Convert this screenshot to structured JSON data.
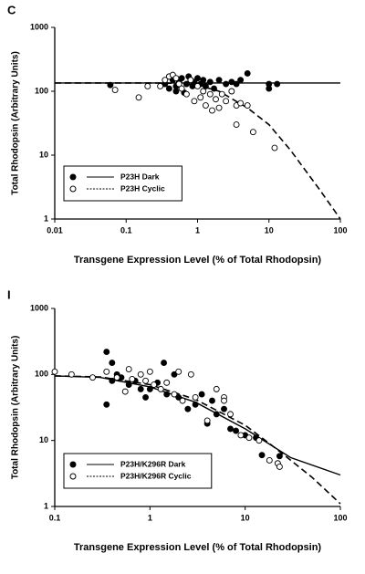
{
  "chart_data": [
    {
      "type": "scatter",
      "panel_label": "C",
      "xlabel": "Transgene Expression Level (% of Total Rhodopsin)",
      "ylabel": "Total Rhodopsin (Arbitrary Units)",
      "log_x": true,
      "log_y": true,
      "xlim": [
        0.01,
        100
      ],
      "xticks": [
        0.01,
        0.1,
        1,
        10,
        100
      ],
      "ylim": [
        1,
        1000
      ],
      "yticks": [
        1,
        10,
        100,
        1000
      ],
      "legend": "lower left",
      "series": [
        {
          "name": "P23H Dark",
          "color": "#000000",
          "marker_filled": true,
          "line_dash": false,
          "x": [
            0.06,
            0.35,
            0.4,
            0.45,
            0.5,
            0.5,
            0.55,
            0.6,
            0.65,
            0.7,
            0.75,
            0.8,
            0.85,
            0.9,
            1.0,
            1.1,
            1.2,
            1.3,
            1.5,
            1.7,
            2.0,
            2.5,
            3.0,
            3.5,
            4.0,
            5.0,
            10,
            10,
            13
          ],
          "values": [
            125,
            130,
            110,
            150,
            120,
            100,
            140,
            160,
            95,
            130,
            170,
            150,
            120,
            140,
            160,
            130,
            150,
            120,
            140,
            110,
            150,
            130,
            140,
            130,
            150,
            190,
            110,
            130,
            130
          ],
          "fit_x": [
            0.01,
            100
          ],
          "fit_values": [
            135,
            135
          ]
        },
        {
          "name": "P23H Cyclic",
          "color": "#000000",
          "marker_filled": false,
          "line_dash": true,
          "x": [
            0.07,
            0.15,
            0.2,
            0.3,
            0.35,
            0.4,
            0.45,
            0.5,
            0.55,
            0.6,
            0.7,
            0.8,
            0.9,
            1.0,
            1.1,
            1.2,
            1.3,
            1.5,
            1.6,
            1.8,
            2.0,
            2.2,
            2.5,
            3.0,
            3.5,
            4.0,
            5.0,
            6.0,
            3.5,
            12
          ],
          "values": [
            105,
            80,
            120,
            120,
            150,
            170,
            180,
            160,
            130,
            110,
            90,
            150,
            70,
            120,
            80,
            100,
            60,
            90,
            50,
            75,
            55,
            90,
            70,
            100,
            60,
            65,
            60,
            23,
            30,
            13
          ],
          "fit_x": [
            0.01,
            0.3,
            0.5,
            1,
            2,
            5,
            10,
            20,
            50,
            100
          ],
          "fit_values": [
            135,
            135,
            133,
            125,
            100,
            55,
            30,
            12,
            3,
            1
          ]
        }
      ]
    },
    {
      "type": "scatter",
      "panel_label": "I",
      "xlabel": "Transgene Expression Level (% of Total Rhodopsin)",
      "ylabel": "Total Rhodopsin (Arbitrary Units)",
      "log_x": true,
      "log_y": true,
      "xlim": [
        0.1,
        100
      ],
      "xticks": [
        0.1,
        1,
        10,
        100
      ],
      "ylim": [
        1,
        1000
      ],
      "yticks": [
        1,
        10,
        100,
        1000
      ],
      "legend": "lower left",
      "series": [
        {
          "name": "P23H/K296R Dark",
          "color": "#000000",
          "marker_filled": true,
          "line_dash": false,
          "x": [
            0.35,
            0.35,
            0.4,
            0.4,
            0.45,
            0.5,
            0.6,
            0.7,
            0.8,
            0.9,
            1.0,
            1.2,
            1.4,
            1.5,
            1.8,
            2.0,
            2.5,
            3.0,
            3.5,
            4.0,
            4.5,
            5.0,
            6.0,
            7,
            8,
            10,
            13,
            15,
            23
          ],
          "values": [
            35,
            220,
            80,
            150,
            100,
            90,
            70,
            80,
            60,
            45,
            60,
            75,
            150,
            50,
            100,
            45,
            30,
            35,
            50,
            18,
            40,
            25,
            30,
            15,
            14,
            12,
            11,
            6,
            5.8
          ],
          "fit_x": [
            0.1,
            0.3,
            1,
            3,
            10,
            30,
            100
          ],
          "fit_values": [
            95,
            90,
            65,
            38,
            15,
            5.5,
            3
          ]
        },
        {
          "name": "P23H/K296R Cyclic",
          "color": "#000000",
          "marker_filled": false,
          "line_dash": true,
          "x": [
            0.1,
            0.15,
            0.25,
            0.35,
            0.45,
            0.55,
            0.6,
            0.65,
            0.8,
            0.9,
            1.0,
            1.1,
            1.3,
            1.5,
            1.8,
            2.0,
            2.2,
            2.7,
            3.0,
            4.0,
            5,
            6,
            7,
            9,
            11,
            14,
            18,
            22,
            23,
            6
          ],
          "values": [
            110,
            100,
            90,
            110,
            90,
            55,
            120,
            85,
            100,
            80,
            110,
            70,
            60,
            75,
            50,
            110,
            40,
            100,
            45,
            20,
            60,
            45,
            25,
            12,
            11,
            10,
            5,
            4.5,
            4,
            40
          ],
          "fit_x": [
            0.1,
            0.3,
            1,
            3,
            10,
            20,
            50,
            100
          ],
          "fit_values": [
            95,
            92,
            70,
            42,
            17,
            8,
            2.8,
            1.1
          ]
        }
      ]
    }
  ]
}
